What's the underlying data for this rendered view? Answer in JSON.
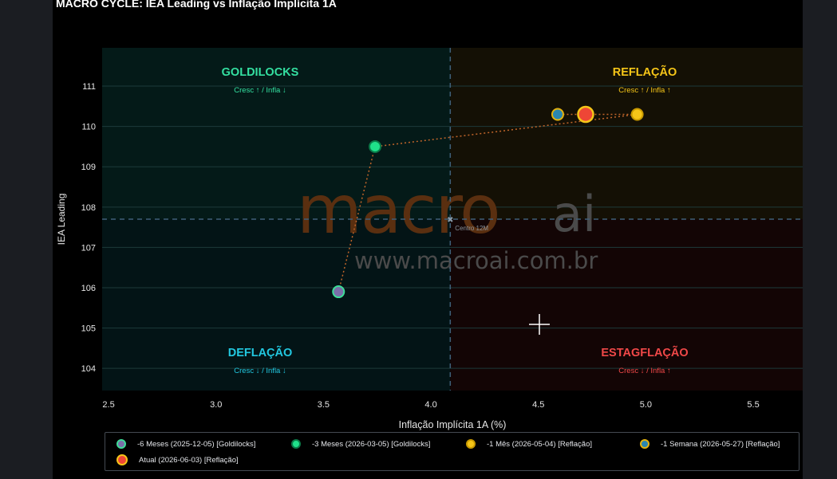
{
  "title": "MACRO CYCLE: IEA Leading vs Inflação Implícita 1A",
  "watermark": {
    "brand_main": "macro",
    "brand_ai": "ai",
    "url": "www.macroai.com.br"
  },
  "chart_data": {
    "type": "scatter",
    "title": "MACRO CYCLE: IEA Leading vs Inflação Implícita 1A",
    "xlabel": "Inflação Implícita 1A (%)",
    "ylabel": "IEA Leading",
    "xlim": [
      2.47,
      5.73
    ],
    "ylim": [
      103.45,
      111.95
    ],
    "x_ticks": [
      2.5,
      3.0,
      3.5,
      4.0,
      4.5,
      5.0,
      5.5
    ],
    "x_tick_labels": [
      "2.5",
      "3.0",
      "3.5",
      "4.0",
      "4.5",
      "5.0",
      "5.5"
    ],
    "y_ticks": [
      104,
      105,
      106,
      107,
      108,
      109,
      110,
      111
    ],
    "y_tick_labels": [
      "104",
      "105",
      "106",
      "107",
      "108",
      "109",
      "110",
      "111"
    ],
    "grid": true,
    "center": {
      "x": 4.09,
      "y": 107.7,
      "label": "Centro 12M"
    },
    "quadrants": [
      {
        "name": "GOLDILOCKS",
        "sub": "Cresc ↑ / Infla ↓",
        "color": "#34e0a1",
        "position": "top-left"
      },
      {
        "name": "REFLAÇÃO",
        "sub": "Cresc ↑ / Infla ↑",
        "color": "#f5c518",
        "position": "top-right"
      },
      {
        "name": "DEFLAÇÃO",
        "sub": "Cresc ↓ / Infla ↓",
        "color": "#22c8e0",
        "position": "bottom-left"
      },
      {
        "name": "ESTAGFLAÇÃO",
        "sub": "Cresc ↓ / Infla ↑",
        "color": "#f04848",
        "position": "bottom-right"
      }
    ],
    "series": [
      {
        "name": "-6 Meses (2025-12-05) [Goldilocks]",
        "x": 3.57,
        "y": 105.9,
        "fill": "#7a6ea8",
        "stroke": "#3ddc97",
        "size": "normal"
      },
      {
        "name": "-3 Meses (2026-03-05) [Goldilocks]",
        "x": 3.74,
        "y": 109.5,
        "fill": "#1fe08a",
        "stroke": "#0a7a48",
        "size": "normal"
      },
      {
        "name": "-1 Mês (2026-05-04) [Reflação]",
        "x": 4.96,
        "y": 110.3,
        "fill": "#f5c518",
        "stroke": "#c99a00",
        "size": "normal"
      },
      {
        "name": "-1 Semana (2026-05-27) [Reflação]",
        "x": 4.59,
        "y": 110.3,
        "fill": "#2a86b0",
        "stroke": "#e3b20f",
        "size": "normal"
      },
      {
        "name": "Atual (2026-06-03) [Reflação]",
        "x": 4.72,
        "y": 110.3,
        "fill": "#ee4636",
        "stroke": "#f5c518",
        "size": "large"
      }
    ],
    "path_order": [
      0,
      1,
      2,
      3,
      4
    ],
    "legend": "bottom",
    "colors": {
      "background": "#000000",
      "grid": "#1d3a3a",
      "path": "#c0652a",
      "center_line": "#3f5f78"
    }
  }
}
